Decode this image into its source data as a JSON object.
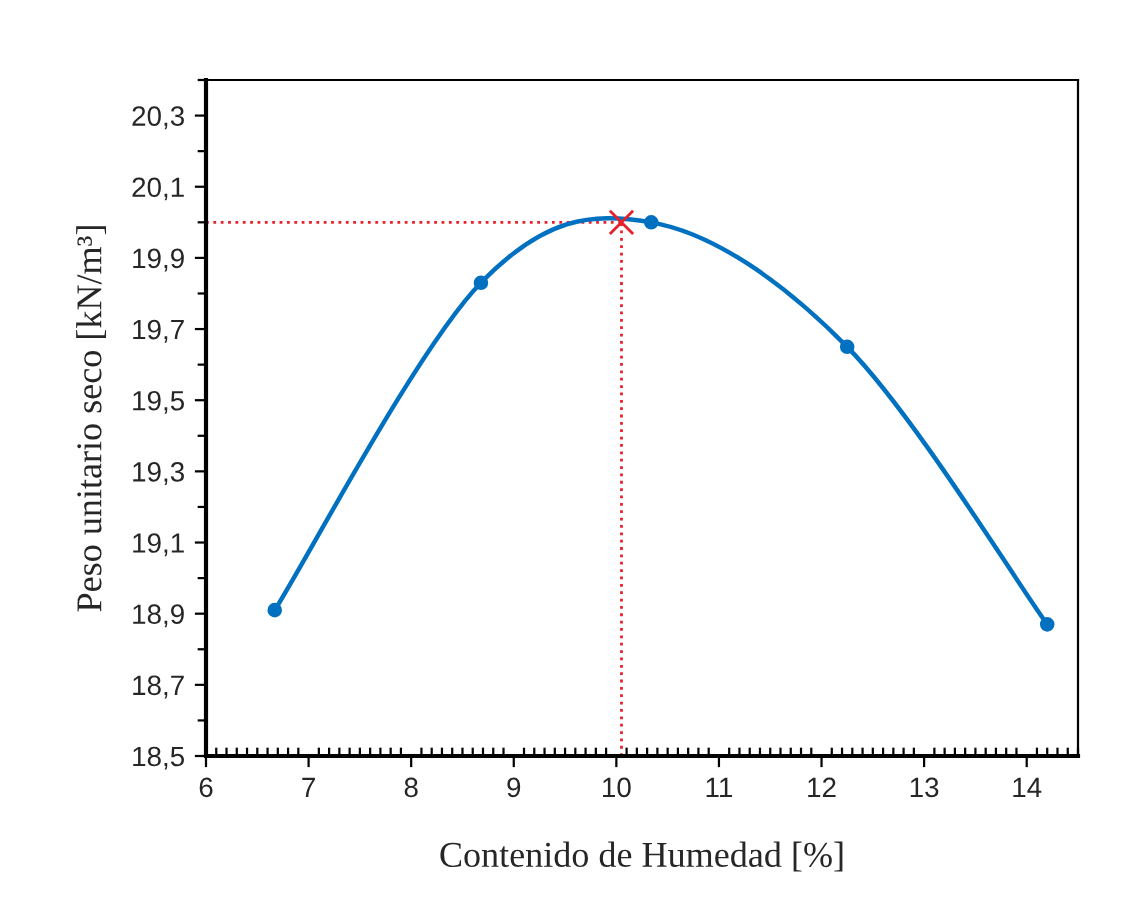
{
  "chart_data": {
    "type": "line",
    "xlabel": "Contenido de Humedad [%]",
    "ylabel": "Peso unitario seco [kN/m³]",
    "series": [
      {
        "color": "#0070c0",
        "marker": "circle",
        "x": [
          6.67,
          8.68,
          10.34,
          12.25,
          14.2
        ],
        "values": [
          18.91,
          19.83,
          20.0,
          19.65,
          18.87
        ]
      },
      {
        "type": "scatter",
        "color": "#e8202a",
        "marker": "cross",
        "x": [
          10.05
        ],
        "values": [
          20.0
        ]
      }
    ],
    "ref_lines": [
      {
        "axis": "x",
        "value": 10.05,
        "color": "#e8202a",
        "line_style": "dotted"
      },
      {
        "axis": "y",
        "value": 20.0,
        "color": "#e8202a",
        "line_style": "dotted"
      }
    ],
    "xlim": [
      6,
      14.5
    ],
    "xticks": [
      6,
      7,
      8,
      9,
      10,
      11,
      12,
      13,
      14
    ],
    "ylim": [
      18.5,
      20.4
    ],
    "yticks": [
      {
        "value": 18.5,
        "label": "18,5"
      },
      {
        "value": 18.7,
        "label": "18,7"
      },
      {
        "value": 18.9,
        "label": "18,9"
      },
      {
        "value": 19.1,
        "label": "19,1"
      },
      {
        "value": 19.3,
        "label": "19,3"
      },
      {
        "value": 19.5,
        "label": "19,5"
      },
      {
        "value": 19.7,
        "label": "19,7"
      },
      {
        "value": 19.9,
        "label": "19,9"
      },
      {
        "value": 20.1,
        "label": "20,1"
      },
      {
        "value": 20.3,
        "label": "20,3"
      }
    ],
    "grid": false,
    "legend": false
  }
}
